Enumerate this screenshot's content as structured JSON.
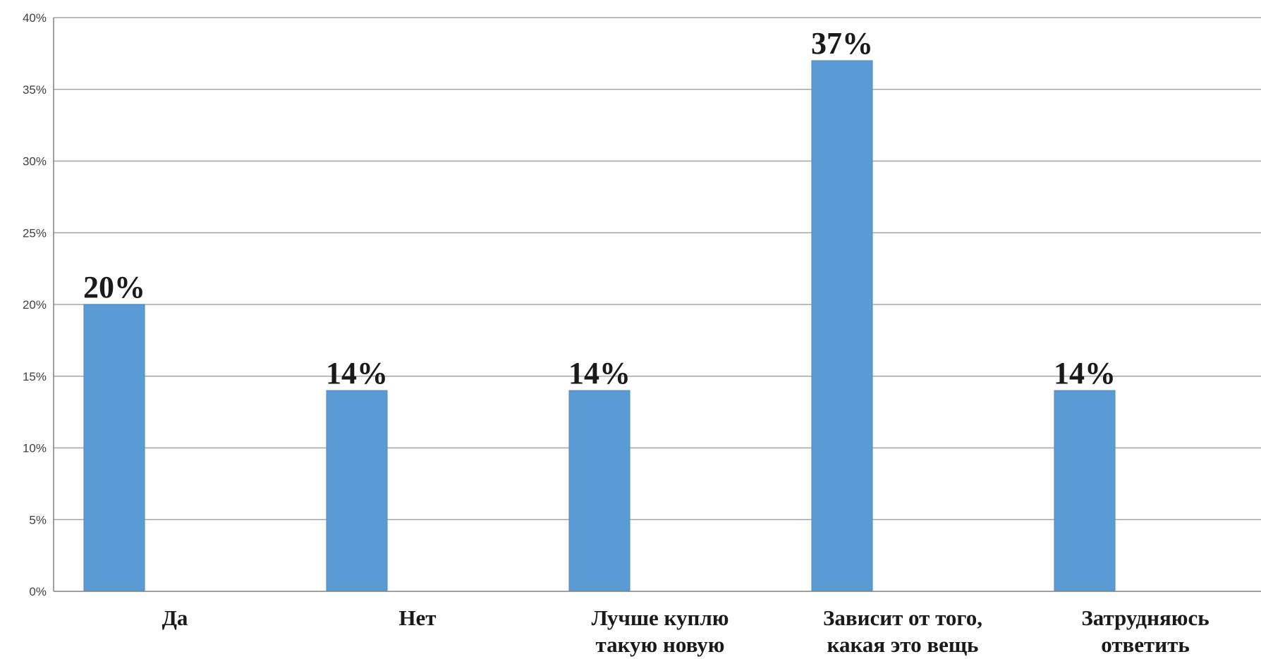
{
  "chart_data": {
    "type": "bar",
    "categories": [
      [
        "Да"
      ],
      [
        "Нет"
      ],
      [
        "Лучше куплю",
        "такую новую"
      ],
      [
        "Зависит от того,",
        "какая это вещь"
      ],
      [
        "Затрудняюсь",
        "ответить"
      ]
    ],
    "values": [
      20,
      14,
      14,
      37,
      14
    ],
    "data_labels": [
      "20%",
      "14%",
      "14%",
      "37%",
      "14%"
    ],
    "y_ticks": [
      "0%",
      "5%",
      "10%",
      "15%",
      "20%",
      "25%",
      "30%",
      "35%",
      "40%"
    ],
    "ylim": [
      0,
      40
    ],
    "grid": true,
    "legend": "none",
    "colors": {
      "bar": "#5b9bd5",
      "bar_edge": "#4a88c2",
      "grid": "#a6a6a6",
      "axis": "#808080"
    }
  }
}
